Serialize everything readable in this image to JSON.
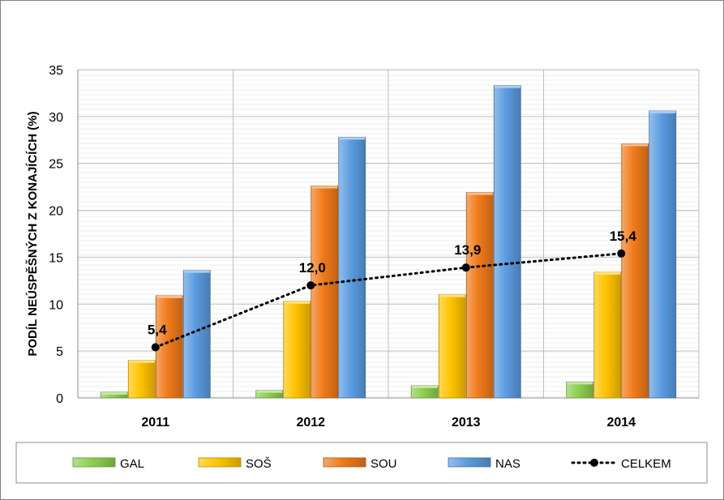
{
  "chart_data": {
    "type": "bar",
    "title": "",
    "xlabel": "",
    "ylabel": "PODÍL NEÚSPĚŠNÝCH Z KONAJÍCÍCH (%)",
    "ylim": [
      0,
      35
    ],
    "yticks": [
      0,
      5,
      10,
      15,
      20,
      25,
      30,
      35
    ],
    "categories": [
      "2011",
      "2012",
      "2013",
      "2014"
    ],
    "series": [
      {
        "name": "GAL",
        "color": "#8fce4f",
        "values": [
          0.6,
          0.8,
          1.3,
          1.7
        ]
      },
      {
        "name": "SOŠ",
        "color": "#ffc300",
        "values": [
          4.0,
          10.3,
          11.0,
          13.4
        ]
      },
      {
        "name": "SOU",
        "color": "#f07a1a",
        "values": [
          10.9,
          22.6,
          21.9,
          27.1
        ]
      },
      {
        "name": "NAS",
        "color": "#5b9be0",
        "values": [
          13.6,
          27.8,
          33.3,
          30.6
        ]
      }
    ],
    "line": {
      "name": "CELKEM",
      "color": "#000000",
      "values": [
        5.4,
        12.0,
        13.9,
        15.4
      ],
      "labels": [
        "5,4",
        "12,0",
        "13,9",
        "15,4"
      ]
    },
    "grid": true,
    "legend": "bottom"
  }
}
